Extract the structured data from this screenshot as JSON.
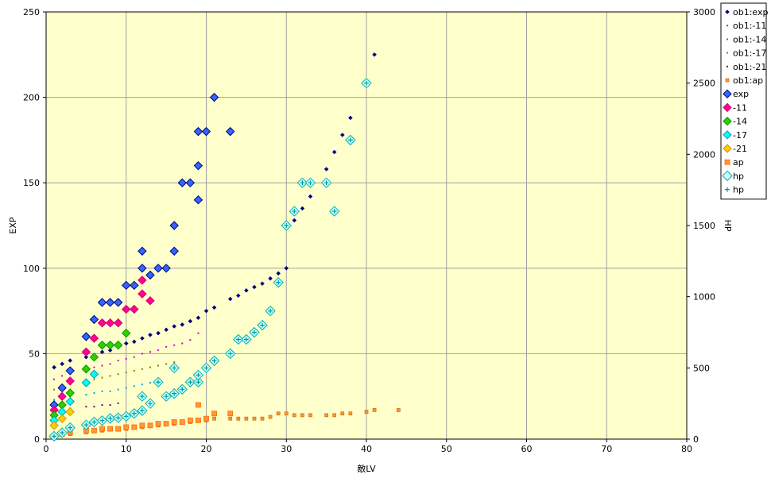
{
  "chart_data": {
    "type": "scatter",
    "xlabel": "敵LV",
    "ylabel": "EXP",
    "y2label": "HP",
    "xlim": [
      0,
      80
    ],
    "ylim": [
      0,
      250
    ],
    "y2lim": [
      0,
      3000
    ],
    "x_ticks": [
      "0",
      "10",
      "20",
      "30",
      "40",
      "50",
      "60",
      "70",
      "80"
    ],
    "y_ticks": [
      "0",
      "50",
      "100",
      "150",
      "200",
      "250"
    ],
    "y2_ticks": [
      "0",
      "500",
      "1000",
      "1500",
      "2000",
      "2500",
      "3000"
    ],
    "grid": true,
    "legend_position": "right",
    "colors": {
      "plot_bg": "#ffffcc",
      "grid": "#a0a0a0",
      "navy": "#000080",
      "magenta": "#cc00cc",
      "olive": "#808000",
      "cyan": "#00a0e0",
      "purple": "#660066",
      "orange": "#ff9933",
      "blue": "#3366ff",
      "pink": "#ff0099",
      "green": "#33cc00",
      "cyan_bright": "#00ffff",
      "gold": "#ffcc00",
      "teal": "#009999"
    },
    "series": [
      {
        "name": "ob1:exp",
        "axis": "y",
        "marker": "small-diamond",
        "color": "#000080",
        "fill": "#000080",
        "points": [
          [
            1,
            42
          ],
          [
            2,
            44
          ],
          [
            3,
            46
          ],
          [
            5,
            48
          ],
          [
            6,
            49
          ],
          [
            7,
            51
          ],
          [
            8,
            52
          ],
          [
            9,
            54
          ],
          [
            10,
            56
          ],
          [
            11,
            57
          ],
          [
            12,
            59
          ],
          [
            13,
            61
          ],
          [
            14,
            62
          ],
          [
            15,
            64
          ],
          [
            16,
            66
          ],
          [
            17,
            67
          ],
          [
            18,
            69
          ],
          [
            19,
            71
          ],
          [
            20,
            75
          ],
          [
            21,
            77
          ],
          [
            23,
            82
          ],
          [
            24,
            84
          ],
          [
            25,
            87
          ],
          [
            26,
            89
          ],
          [
            27,
            91
          ],
          [
            28,
            94
          ],
          [
            29,
            97
          ],
          [
            30,
            100
          ],
          [
            31,
            128
          ],
          [
            32,
            135
          ],
          [
            33,
            142
          ],
          [
            35,
            158
          ],
          [
            36,
            168
          ],
          [
            37,
            178
          ],
          [
            38,
            188
          ],
          [
            41,
            225
          ]
        ]
      },
      {
        "name": "ob1:-11",
        "axis": "y",
        "marker": "dot",
        "color": "#cc00cc",
        "fill": "#cc00cc",
        "points": [
          [
            1,
            35
          ],
          [
            2,
            37
          ],
          [
            3,
            39
          ],
          [
            5,
            41
          ],
          [
            6,
            42
          ],
          [
            7,
            43
          ],
          [
            8,
            44
          ],
          [
            9,
            46
          ],
          [
            10,
            47
          ],
          [
            11,
            48
          ],
          [
            12,
            50
          ],
          [
            13,
            51
          ],
          [
            14,
            52
          ],
          [
            15,
            54
          ],
          [
            16,
            55
          ],
          [
            17,
            56
          ],
          [
            18,
            58
          ],
          [
            19,
            62
          ]
        ]
      },
      {
        "name": "ob1:-14",
        "axis": "y",
        "marker": "dot",
        "color": "#808000",
        "fill": "#808000",
        "points": [
          [
            1,
            29
          ],
          [
            2,
            31
          ],
          [
            3,
            32
          ],
          [
            5,
            34
          ],
          [
            6,
            35
          ],
          [
            7,
            36
          ],
          [
            8,
            37
          ],
          [
            9,
            38
          ],
          [
            10,
            39
          ],
          [
            11,
            40
          ],
          [
            12,
            41
          ],
          [
            13,
            42
          ],
          [
            14,
            43
          ],
          [
            15,
            44
          ],
          [
            16,
            45
          ]
        ]
      },
      {
        "name": "ob1:-17",
        "axis": "y",
        "marker": "dot",
        "color": "#00a0e0",
        "fill": "#00a0e0",
        "points": [
          [
            1,
            23
          ],
          [
            2,
            24
          ],
          [
            3,
            25
          ],
          [
            5,
            26
          ],
          [
            6,
            27
          ],
          [
            7,
            28
          ],
          [
            8,
            28
          ],
          [
            9,
            29
          ],
          [
            10,
            30
          ],
          [
            11,
            31
          ],
          [
            12,
            32
          ],
          [
            13,
            33
          ],
          [
            14,
            34
          ]
        ]
      },
      {
        "name": "ob1:-21",
        "axis": "y",
        "marker": "dot",
        "color": "#660066",
        "fill": "#660066",
        "points": [
          [
            1,
            16
          ],
          [
            2,
            17
          ],
          [
            3,
            18
          ],
          [
            5,
            19
          ],
          [
            6,
            19
          ],
          [
            7,
            20
          ],
          [
            8,
            20
          ],
          [
            9,
            21
          ]
        ]
      },
      {
        "name": "ob1:ap",
        "axis": "y",
        "marker": "small-square",
        "color": "#cc6600",
        "fill": "#ff9933",
        "points": [
          [
            1,
            2
          ],
          [
            2,
            3
          ],
          [
            3,
            3
          ],
          [
            5,
            4
          ],
          [
            6,
            5
          ],
          [
            7,
            5
          ],
          [
            8,
            6
          ],
          [
            9,
            6
          ],
          [
            10,
            6
          ],
          [
            11,
            7
          ],
          [
            12,
            7
          ],
          [
            13,
            8
          ],
          [
            14,
            8
          ],
          [
            15,
            9
          ],
          [
            16,
            9
          ],
          [
            17,
            10
          ],
          [
            18,
            10
          ],
          [
            19,
            11
          ],
          [
            20,
            11
          ],
          [
            21,
            12
          ],
          [
            23,
            12
          ],
          [
            24,
            12
          ],
          [
            25,
            12
          ],
          [
            26,
            12
          ],
          [
            27,
            12
          ],
          [
            28,
            13
          ],
          [
            29,
            15
          ],
          [
            30,
            15
          ],
          [
            31,
            14
          ],
          [
            32,
            14
          ],
          [
            33,
            14
          ],
          [
            35,
            14
          ],
          [
            36,
            14
          ],
          [
            37,
            15
          ],
          [
            38,
            15
          ],
          [
            40,
            16
          ],
          [
            41,
            17
          ],
          [
            44,
            17
          ]
        ]
      },
      {
        "name": "exp",
        "axis": "y",
        "marker": "diamond",
        "color": "#000080",
        "fill": "#3366ff",
        "points": [
          [
            1,
            20
          ],
          [
            2,
            30
          ],
          [
            3,
            40
          ],
          [
            5,
            60
          ],
          [
            6,
            70
          ],
          [
            7,
            80
          ],
          [
            8,
            80
          ],
          [
            9,
            80
          ],
          [
            10,
            90
          ],
          [
            11,
            90
          ],
          [
            12,
            100
          ],
          [
            12,
            110
          ],
          [
            13,
            96
          ],
          [
            14,
            100
          ],
          [
            15,
            100
          ],
          [
            16,
            110
          ],
          [
            16,
            125
          ],
          [
            17,
            150
          ],
          [
            18,
            150
          ],
          [
            19,
            140
          ],
          [
            19,
            160
          ],
          [
            19,
            180
          ],
          [
            20,
            180
          ],
          [
            21,
            200
          ],
          [
            23,
            180
          ]
        ]
      },
      {
        "name": "-11",
        "axis": "y",
        "marker": "diamond",
        "color": "#cc0066",
        "fill": "#ff0099",
        "points": [
          [
            1,
            17
          ],
          [
            2,
            25
          ],
          [
            3,
            34
          ],
          [
            5,
            51
          ],
          [
            6,
            59
          ],
          [
            7,
            68
          ],
          [
            8,
            68
          ],
          [
            9,
            68
          ],
          [
            10,
            76
          ],
          [
            11,
            76
          ],
          [
            12,
            85
          ],
          [
            12,
            93
          ],
          [
            13,
            81
          ]
        ]
      },
      {
        "name": "-14",
        "axis": "y",
        "marker": "diamond",
        "color": "#009900",
        "fill": "#33cc00",
        "points": [
          [
            1,
            14
          ],
          [
            2,
            20
          ],
          [
            3,
            27
          ],
          [
            5,
            41
          ],
          [
            6,
            48
          ],
          [
            7,
            55
          ],
          [
            8,
            55
          ],
          [
            9,
            55
          ],
          [
            10,
            62
          ]
        ]
      },
      {
        "name": "-17",
        "axis": "y",
        "marker": "diamond",
        "color": "#00a0a0",
        "fill": "#00ffff",
        "points": [
          [
            1,
            11
          ],
          [
            2,
            16
          ],
          [
            3,
            22
          ],
          [
            5,
            33
          ],
          [
            6,
            38
          ]
        ]
      },
      {
        "name": "-21",
        "axis": "y",
        "marker": "diamond",
        "color": "#cc9900",
        "fill": "#ffcc00",
        "points": [
          [
            1,
            8
          ],
          [
            2,
            12
          ],
          [
            3,
            16
          ]
        ]
      },
      {
        "name": "ap",
        "axis": "y",
        "marker": "square",
        "color": "#ff6600",
        "fill": "#ff9933",
        "points": [
          [
            1,
            2
          ],
          [
            2,
            3
          ],
          [
            3,
            4
          ],
          [
            5,
            5
          ],
          [
            6,
            5
          ],
          [
            7,
            6
          ],
          [
            8,
            6
          ],
          [
            9,
            6
          ],
          [
            10,
            7
          ],
          [
            11,
            7
          ],
          [
            12,
            8
          ],
          [
            13,
            8
          ],
          [
            14,
            9
          ],
          [
            15,
            9
          ],
          [
            16,
            10
          ],
          [
            17,
            10
          ],
          [
            18,
            11
          ],
          [
            19,
            11
          ],
          [
            19,
            20
          ],
          [
            20,
            12
          ],
          [
            21,
            15
          ],
          [
            23,
            15
          ]
        ]
      },
      {
        "name": "hp",
        "axis": "y2",
        "marker": "hollow-diamond",
        "color": "#00b0b0",
        "fill": "#ccffff",
        "points": [
          [
            1,
            20
          ],
          [
            2,
            45
          ],
          [
            3,
            80
          ],
          [
            5,
            100
          ],
          [
            6,
            120
          ],
          [
            7,
            130
          ],
          [
            8,
            145
          ],
          [
            9,
            150
          ],
          [
            10,
            160
          ],
          [
            11,
            180
          ],
          [
            12,
            200
          ],
          [
            12,
            300
          ],
          [
            13,
            250
          ],
          [
            14,
            400
          ],
          [
            15,
            300
          ],
          [
            16,
            320
          ],
          [
            16,
            500
          ],
          [
            17,
            350
          ],
          [
            18,
            400
          ],
          [
            19,
            400
          ],
          [
            19,
            450
          ],
          [
            20,
            500
          ],
          [
            21,
            550
          ],
          [
            23,
            600
          ],
          [
            24,
            700
          ],
          [
            25,
            700
          ],
          [
            26,
            750
          ],
          [
            27,
            800
          ],
          [
            28,
            900
          ],
          [
            29,
            1100
          ],
          [
            30,
            1500
          ],
          [
            31,
            1600
          ],
          [
            32,
            1800
          ],
          [
            33,
            1800
          ],
          [
            35,
            1800
          ],
          [
            36,
            1600
          ],
          [
            38,
            2100
          ],
          [
            40,
            2500
          ]
        ]
      },
      {
        "name": "hp",
        "axis": "y2",
        "marker": "plus",
        "color": "#009999",
        "fill": "#009999",
        "points": [
          [
            1,
            20
          ],
          [
            2,
            45
          ],
          [
            3,
            80
          ],
          [
            5,
            100
          ],
          [
            6,
            120
          ],
          [
            7,
            130
          ],
          [
            8,
            145
          ],
          [
            9,
            150
          ],
          [
            10,
            160
          ],
          [
            11,
            180
          ],
          [
            12,
            200
          ],
          [
            12,
            300
          ],
          [
            13,
            250
          ],
          [
            14,
            400
          ],
          [
            15,
            300
          ],
          [
            16,
            320
          ],
          [
            16,
            500
          ],
          [
            17,
            350
          ],
          [
            18,
            400
          ],
          [
            19,
            400
          ],
          [
            19,
            450
          ],
          [
            20,
            500
          ],
          [
            21,
            550
          ],
          [
            23,
            600
          ],
          [
            24,
            700
          ],
          [
            25,
            700
          ],
          [
            26,
            750
          ],
          [
            27,
            800
          ],
          [
            28,
            900
          ],
          [
            29,
            1100
          ],
          [
            30,
            1500
          ],
          [
            31,
            1600
          ],
          [
            32,
            1800
          ],
          [
            33,
            1800
          ],
          [
            35,
            1800
          ],
          [
            36,
            1600
          ],
          [
            38,
            2100
          ],
          [
            40,
            2500
          ]
        ]
      }
    ]
  }
}
